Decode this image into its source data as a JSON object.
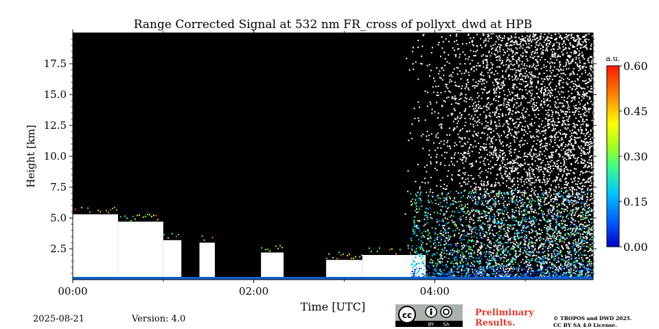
{
  "chart_data": {
    "type": "heatmap",
    "title": "Range Corrected Signal at 532 nm FR_cross of pollyxt_dwd at HPB",
    "xlabel": "Time [UTC]",
    "ylabel": "Height [km]",
    "x_range_hours": [
      0,
      5.75
    ],
    "ylim": [
      0,
      20
    ],
    "x_ticks": [
      {
        "value": 0,
        "label": "00:00"
      },
      {
        "value": 2,
        "label": "02:00"
      },
      {
        "value": 4,
        "label": "04:00"
      }
    ],
    "x_minor_ticks": [
      1,
      3,
      5
    ],
    "y_ticks": [
      {
        "value": 2.5,
        "label": "2.5"
      },
      {
        "value": 5.0,
        "label": "5.0"
      },
      {
        "value": 7.5,
        "label": "7.5"
      },
      {
        "value": 10.0,
        "label": "10.0"
      },
      {
        "value": 12.5,
        "label": "12.5"
      },
      {
        "value": 15.0,
        "label": "15.0"
      },
      {
        "value": 17.5,
        "label": "17.5"
      }
    ],
    "colorbar": {
      "unit": "a.u.",
      "range": [
        0,
        0.6
      ],
      "colormap": "jet",
      "ticks": [
        {
          "value": 0.0,
          "label": "0.00"
        },
        {
          "value": 0.15,
          "label": "0.15"
        },
        {
          "value": 0.3,
          "label": "0.30"
        },
        {
          "value": 0.45,
          "label": "0.45"
        },
        {
          "value": 0.6,
          "label": "0.60"
        }
      ]
    },
    "black_columns_hours": [
      [
        1.2,
        1.4
      ],
      [
        1.57,
        2.08
      ],
      [
        2.33,
        2.8
      ]
    ],
    "saturated_cloud_segments": [
      {
        "start": 0.0,
        "end": 0.5,
        "top_km": 5.3
      },
      {
        "start": 0.5,
        "end": 1.0,
        "top_km": 4.7
      },
      {
        "start": 1.0,
        "end": 1.2,
        "top_km": 3.2
      },
      {
        "start": 1.4,
        "end": 1.57,
        "top_km": 3.0
      },
      {
        "start": 2.08,
        "end": 2.33,
        "top_km": 2.2
      },
      {
        "start": 2.8,
        "end": 3.2,
        "top_km": 1.6
      },
      {
        "start": 3.2,
        "end": 3.9,
        "top_km": 2.0
      }
    ],
    "noise_onset_hour": 3.8
  },
  "footer": {
    "date": "2025-08-21",
    "version": "Version: 4.0",
    "preliminary_line1": "Preliminary",
    "preliminary_line2": "Results.",
    "copyright_line1": "© TROPOS and DWD 2025.",
    "copyright_line2": "CC BY SA 4.0 License.",
    "license_badge": [
      "BY",
      "SA"
    ]
  },
  "colors": {
    "background": "#000000",
    "saturated": "#ffffff",
    "surface": "#1060d0",
    "prelim": "#e03c31"
  }
}
